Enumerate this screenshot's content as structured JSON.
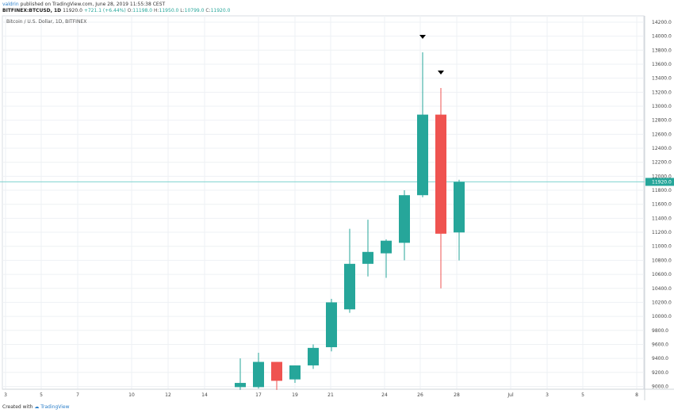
{
  "header": {
    "user": "valdrin",
    "published": "published on TradingView.com, June 28, 2019 11:55:38 CEST",
    "symbol": "BITFINEX:BTCUSD, 1D",
    "price": "11920.0",
    "change": "+721.1 (+6.44%)",
    "ohlc": [
      {
        "label": "O:",
        "value": "11198.0"
      },
      {
        "label": "H:",
        "value": "11950.0"
      },
      {
        "label": "L:",
        "value": "10799.0"
      },
      {
        "label": "C:",
        "value": "11920.0"
      }
    ]
  },
  "chart_data": {
    "type": "candlestick",
    "title": "Bitcoin / U.S. Dollar, 1D, BITFINEX",
    "x_tick_labels": [
      "3",
      "5",
      "7",
      "10",
      "12",
      "14",
      "17",
      "19",
      "21",
      "24",
      "26",
      "28",
      "Jul",
      "3",
      "5",
      "8"
    ],
    "y_tick_labels": [
      "9000.0",
      "9200.0",
      "9400.0",
      "9600.0",
      "9800.0",
      "10000.0",
      "10200.0",
      "10400.0",
      "10600.0",
      "10800.0",
      "11000.0",
      "11200.0",
      "11400.0",
      "11600.0",
      "11800.0",
      "12000.0",
      "12200.0",
      "12400.0",
      "12600.0",
      "12800.0",
      "13000.0",
      "13200.0",
      "13400.0",
      "13600.0",
      "13800.0",
      "14000.0",
      "14200.0"
    ],
    "ylim": [
      8960,
      14290
    ],
    "last_price": 11920.0,
    "last_price_label": "11920.0",
    "candles": [
      {
        "date": "Jun 16",
        "open": 8990,
        "high": 9400,
        "low": 8950,
        "close": 9050
      },
      {
        "date": "Jun 17",
        "open": 8990,
        "high": 9480,
        "low": 8970,
        "close": 9350
      },
      {
        "date": "Jun 18",
        "open": 9350,
        "high": 9350,
        "low": 8950,
        "close": 9080
      },
      {
        "date": "Jun 19",
        "open": 9100,
        "high": 9300,
        "low": 9050,
        "close": 9300
      },
      {
        "date": "Jun 20",
        "open": 9300,
        "high": 9600,
        "low": 9250,
        "close": 9550
      },
      {
        "date": "Jun 21",
        "open": 9560,
        "high": 10250,
        "low": 9500,
        "close": 10200
      },
      {
        "date": "Jun 22",
        "open": 10100,
        "high": 11250,
        "low": 10050,
        "close": 10750
      },
      {
        "date": "Jun 23",
        "open": 10750,
        "high": 11380,
        "low": 10570,
        "close": 10920
      },
      {
        "date": "Jun 24",
        "open": 10900,
        "high": 11100,
        "low": 10550,
        "close": 11080
      },
      {
        "date": "Jun 25",
        "open": 11050,
        "high": 11800,
        "low": 10800,
        "close": 11730
      },
      {
        "date": "Jun 26",
        "open": 11730,
        "high": 13770,
        "low": 11700,
        "close": 12880
      },
      {
        "date": "Jun 27",
        "open": 12880,
        "high": 13260,
        "low": 10400,
        "close": 11180
      },
      {
        "date": "Jun 28",
        "open": 11198,
        "high": 11950,
        "low": 10799,
        "close": 11920
      }
    ],
    "markers": [
      {
        "date": "Jun 26",
        "type": "arrow-down"
      },
      {
        "date": "Jun 27",
        "type": "arrow-down"
      }
    ],
    "colors": {
      "up": "#26a69a",
      "down": "#ef5350",
      "price_line": "#7ed3cf",
      "grid": "#eef1f4",
      "axis_text": "#444444",
      "marker": "#000000"
    }
  },
  "footer": {
    "created_with": "Created with",
    "brand": "TradingView"
  }
}
